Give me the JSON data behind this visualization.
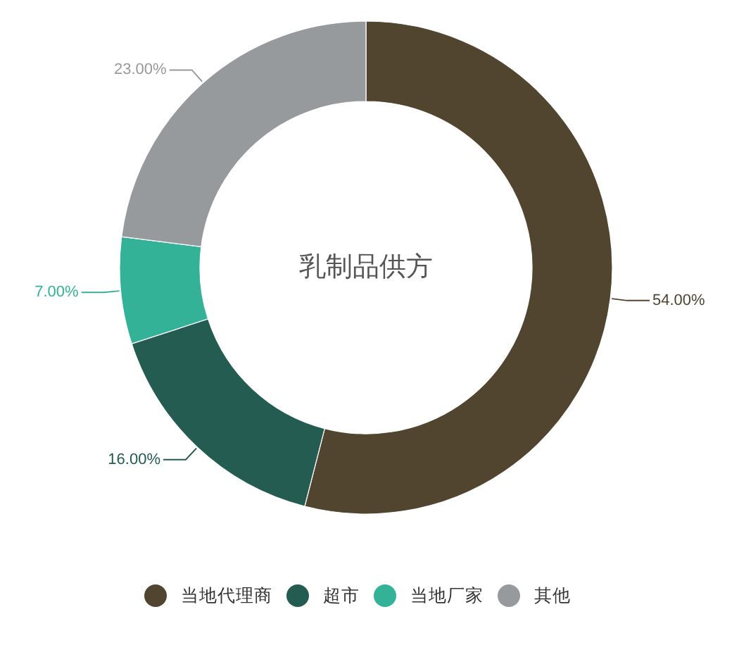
{
  "chart_data": {
    "type": "donut",
    "title": "乳制品供方",
    "categories": [
      "当地代理商",
      "超市",
      "当地厂家",
      "其他"
    ],
    "values": [
      54,
      16,
      7,
      23
    ],
    "colors": [
      "#514530",
      "#245c52",
      "#34b298",
      "#979a9d"
    ],
    "value_labels": [
      "54.00%",
      "16.00%",
      "7.00%",
      "23.00%"
    ],
    "legend": "bottom"
  }
}
